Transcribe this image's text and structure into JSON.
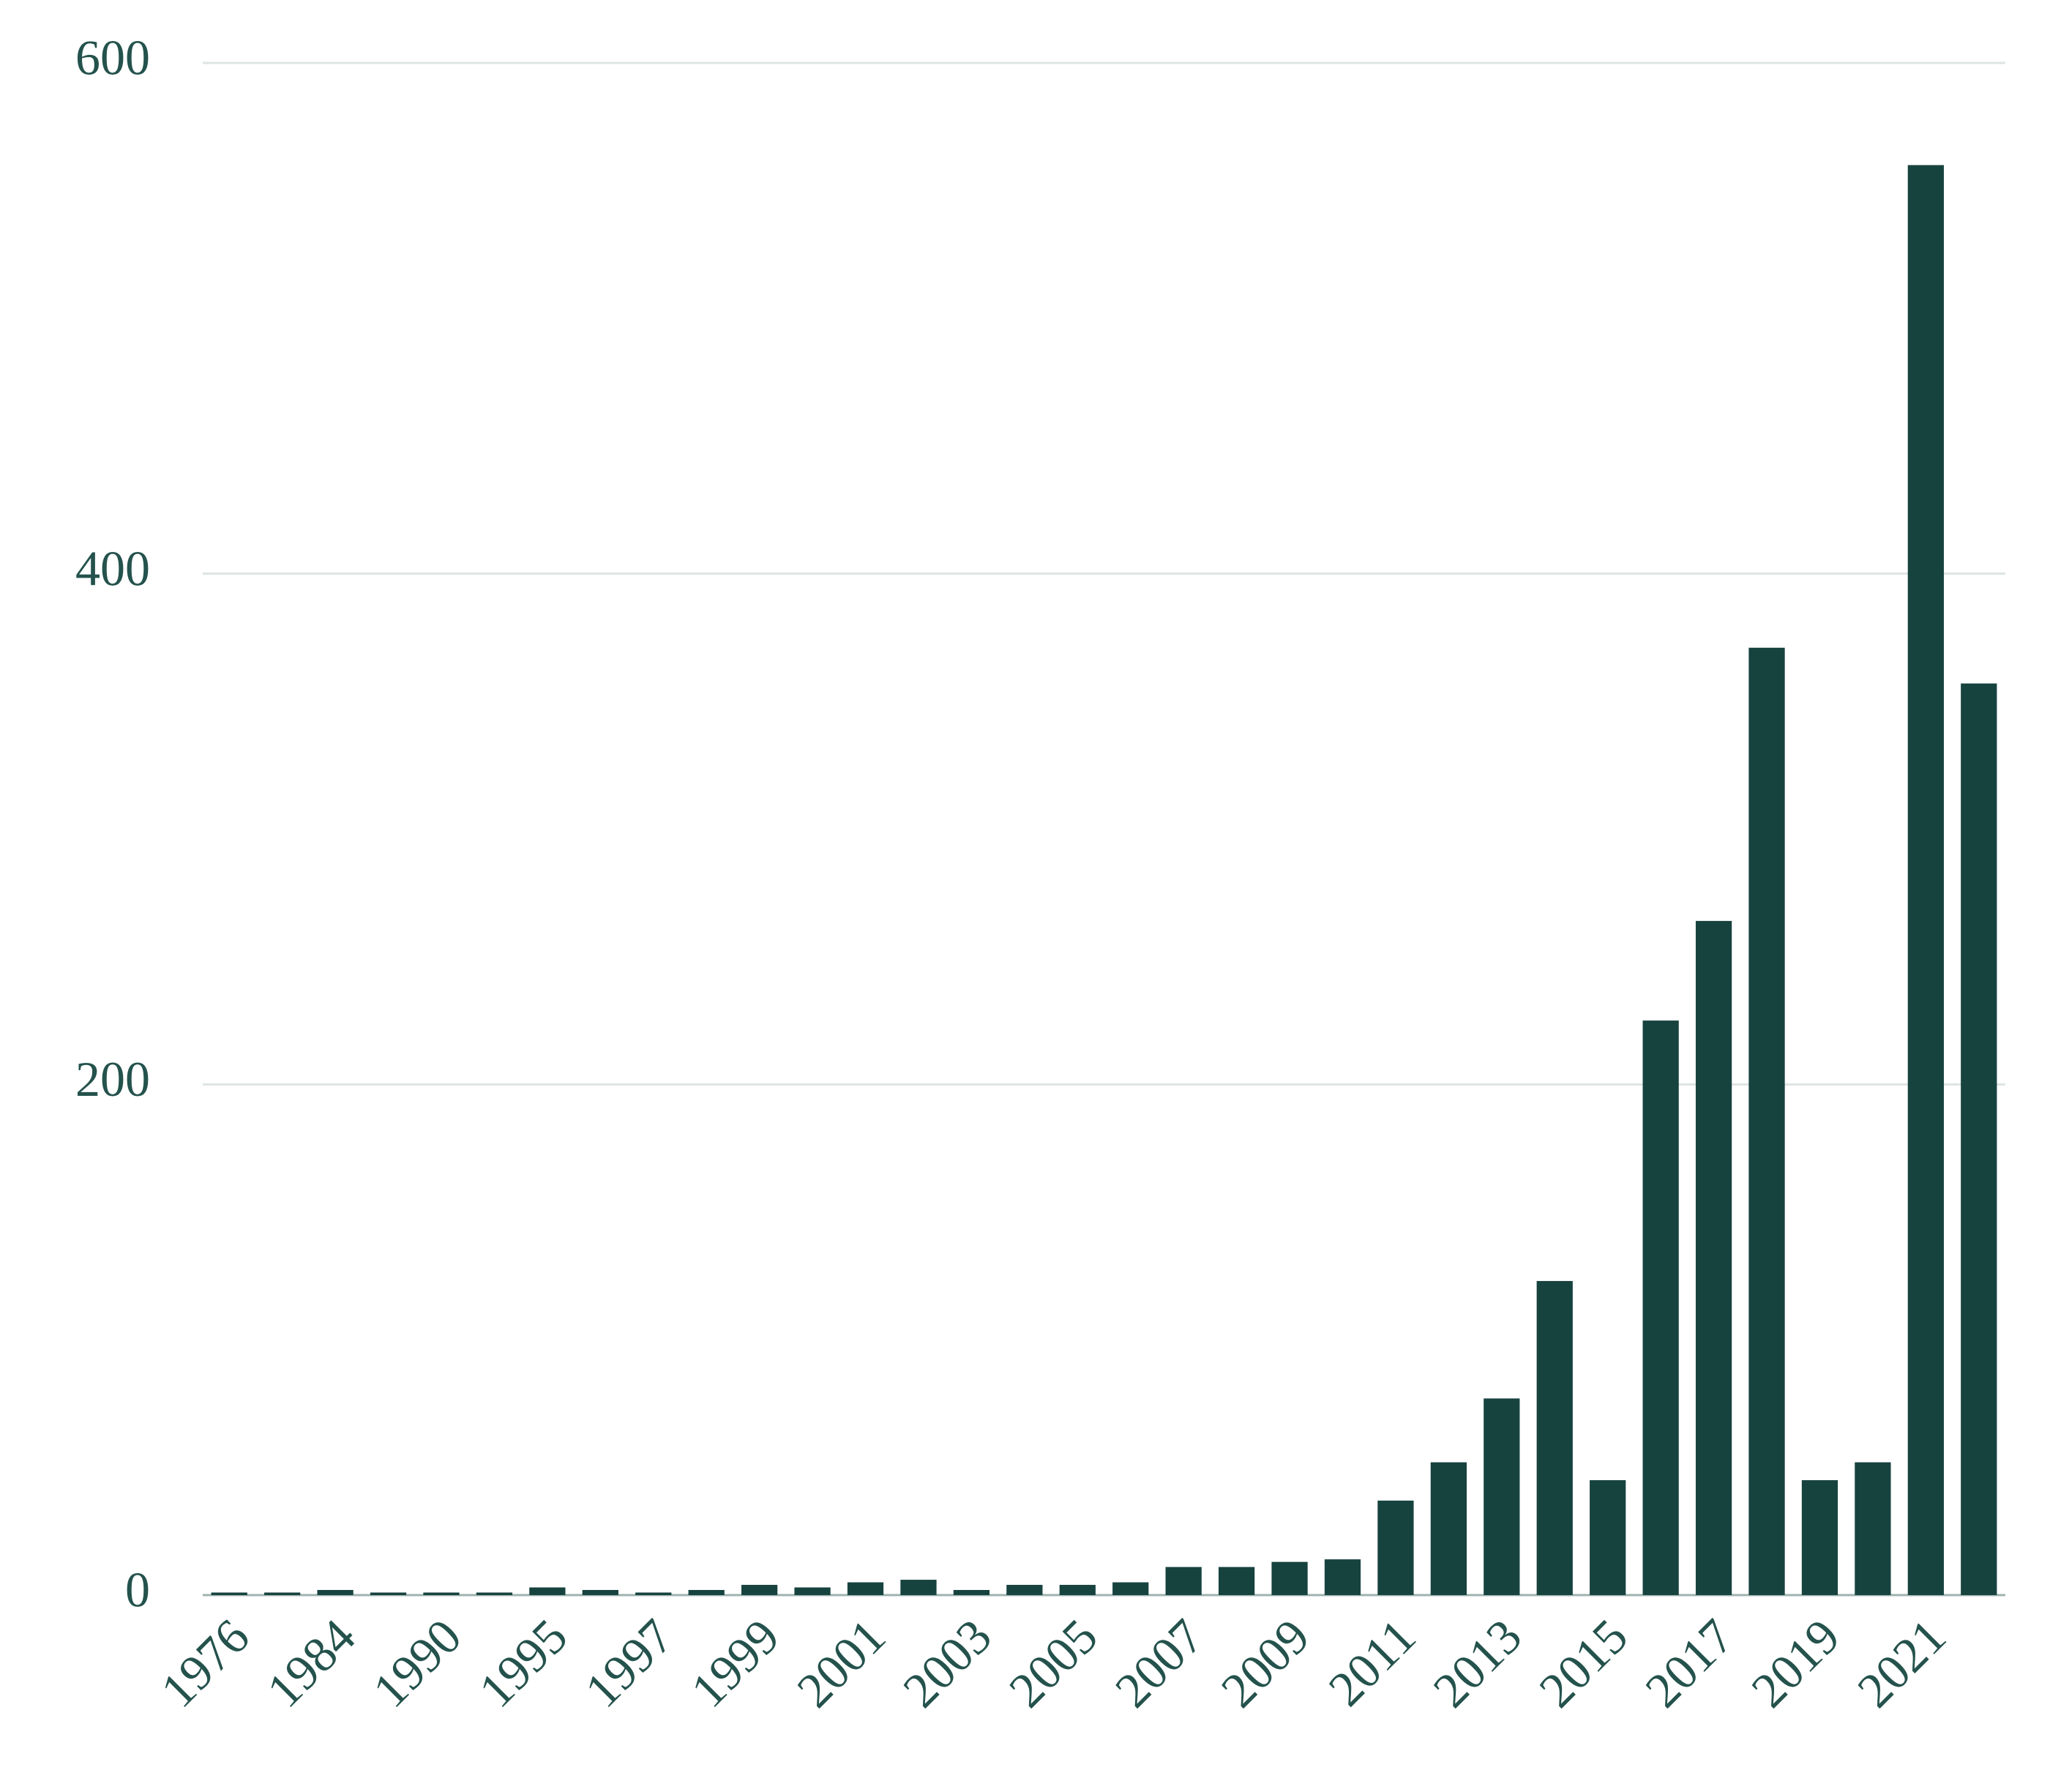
{
  "chart_data": {
    "type": "bar",
    "categories": [
      "1976",
      null,
      "1984",
      null,
      "1990",
      null,
      "1995",
      null,
      "1997",
      null,
      "1999",
      null,
      "2001",
      null,
      "2003",
      null,
      "2005",
      null,
      "2007",
      null,
      "2009",
      null,
      "2011",
      null,
      "2013",
      null,
      "2015",
      null,
      "2017",
      null,
      "2019",
      null,
      "2021",
      null
    ],
    "values": [
      1,
      1,
      2,
      1,
      1,
      1,
      3,
      2,
      1,
      2,
      4,
      3,
      5,
      6,
      2,
      4,
      4,
      5,
      11,
      11,
      13,
      14,
      37,
      52,
      77,
      123,
      45,
      225,
      264,
      371,
      45,
      52,
      560,
      357
    ],
    "color": "#17433f",
    "ylim": [
      0,
      600
    ],
    "yticks": [
      0,
      200,
      400,
      600
    ],
    "grid": true
  }
}
